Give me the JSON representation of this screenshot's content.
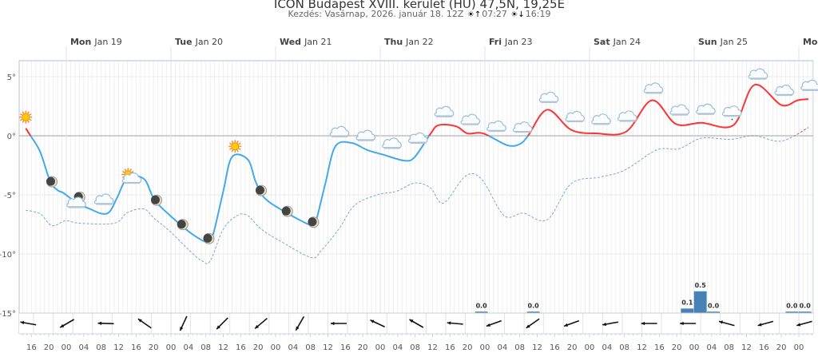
{
  "header": {
    "title": "ICON Budapest XVIII. kerület (HU) 47,5N, 19,25E",
    "subtitle_prefix": "Kezdés: Vasárnap, 2026. január 18. 12Z",
    "sunrise": "07:27",
    "sunset": "16:19"
  },
  "chart_data": {
    "type": "line",
    "title": "ICON Budapest XVIII. kerület (HU) 47,5N, 19,25E",
    "x_unit": "hours since Sun Jan 18 00:00",
    "xlim": [
      11,
      200
    ],
    "ylim": [
      -15,
      6.5
    ],
    "y_ticks": [
      {
        "v": 5,
        "label": "5°"
      },
      {
        "v": 0,
        "label": "0°"
      },
      {
        "v": -5,
        "label": "-5°"
      },
      {
        "v": -10,
        "label": "-10°"
      },
      {
        "v": -15,
        "label": "-15°"
      }
    ],
    "days": [
      {
        "h": 24,
        "name": "Mon",
        "date": "Jan 19"
      },
      {
        "h": 48,
        "name": "Tue",
        "date": "Jan 20"
      },
      {
        "h": 72,
        "name": "Wed",
        "date": "Jan 21"
      },
      {
        "h": 96,
        "name": "Thu",
        "date": "Jan 22"
      },
      {
        "h": 120,
        "name": "Fri",
        "date": "Jan 23"
      },
      {
        "h": 144,
        "name": "Sat",
        "date": "Jan 24"
      },
      {
        "h": 168,
        "name": "Sun",
        "date": "Jan 25"
      },
      {
        "h": 192,
        "name": "Mon",
        "date": ""
      }
    ],
    "hour_labels": [
      "16",
      "20",
      "00",
      "04",
      "08",
      "12",
      "16",
      "20",
      "00",
      "04",
      "08",
      "12",
      "16",
      "20",
      "00",
      "04",
      "08",
      "12",
      "16",
      "20",
      "00",
      "04",
      "08",
      "12",
      "16",
      "20",
      "00",
      "04",
      "08",
      "12",
      "16",
      "20",
      "00",
      "04",
      "08",
      "12",
      "16",
      "20",
      "00",
      "04",
      "08",
      "12",
      "16",
      "20",
      "00"
    ],
    "hour_labels_start": 16,
    "series": [
      {
        "name": "Temperature",
        "colors": {
          "above0": "#ff3333",
          "below0": "#44a9e8"
        },
        "points": [
          [
            14.7,
            0.63
          ],
          [
            15.8,
            0
          ],
          [
            18,
            -1.35
          ],
          [
            20.3,
            -3.85
          ],
          [
            22,
            -4.6
          ],
          [
            23.4,
            -4.85
          ],
          [
            26.5,
            -5.7
          ],
          [
            29.5,
            -6.2
          ],
          [
            32.2,
            -6.6
          ],
          [
            34,
            -6.4
          ],
          [
            35.7,
            -5.2
          ],
          [
            38,
            -3.6
          ],
          [
            41.8,
            -3.65
          ],
          [
            44.2,
            -5.4
          ],
          [
            47.8,
            -6.75
          ],
          [
            52.8,
            -8.3
          ],
          [
            56.4,
            -9
          ],
          [
            57.7,
            -8.3
          ],
          [
            60,
            -4.7
          ],
          [
            62,
            -1.8
          ],
          [
            65.6,
            -2
          ],
          [
            67.4,
            -3.85
          ],
          [
            69.3,
            -5.2
          ],
          [
            73.5,
            -6.3
          ],
          [
            80.2,
            -7.6
          ],
          [
            81.2,
            -7.3
          ],
          [
            83.4,
            -4.05
          ],
          [
            85.7,
            -0.9
          ],
          [
            89.4,
            -0.6
          ],
          [
            93,
            -1.2
          ],
          [
            96.7,
            -1.6
          ],
          [
            101.5,
            -2.1
          ],
          [
            103.9,
            -1.8
          ],
          [
            107.5,
            0.15
          ],
          [
            109.4,
            0.9
          ],
          [
            113.4,
            0.8
          ],
          [
            116,
            0.2
          ],
          [
            119.6,
            0.2
          ],
          [
            125.1,
            -0.8
          ],
          [
            128,
            -0.7
          ],
          [
            129.9,
            0
          ],
          [
            134.3,
            2.2
          ],
          [
            139.8,
            0.5
          ],
          [
            145.6,
            0.2
          ],
          [
            152.4,
            0.35
          ],
          [
            158.3,
            3.0
          ],
          [
            163.8,
            1.0
          ],
          [
            169.7,
            1.1
          ],
          [
            177,
            0.9
          ],
          [
            181.8,
            4.3
          ],
          [
            188,
            2.6
          ],
          [
            191.7,
            3.0
          ],
          [
            194.2,
            3.1
          ]
        ]
      },
      {
        "name": "Dew point",
        "style": "dashed",
        "colors": {
          "above0": "#cc5555",
          "below0": "#7fa6cf"
        },
        "points": [
          [
            14.7,
            -6.3
          ],
          [
            18,
            -6.6
          ],
          [
            20.7,
            -7.6
          ],
          [
            23.8,
            -7.2
          ],
          [
            27.1,
            -7.4
          ],
          [
            35,
            -7.4
          ],
          [
            38,
            -6.5
          ],
          [
            41.8,
            -6.2
          ],
          [
            44.2,
            -7
          ],
          [
            47.8,
            -8.1
          ],
          [
            52.8,
            -9.9
          ],
          [
            55.2,
            -10.6
          ],
          [
            57,
            -10.6
          ],
          [
            60,
            -7.9
          ],
          [
            63.2,
            -6.75
          ],
          [
            65.6,
            -6.75
          ],
          [
            68.7,
            -7.9
          ],
          [
            73.5,
            -9
          ],
          [
            80.2,
            -10.3
          ],
          [
            82.5,
            -9.7
          ],
          [
            86.5,
            -7.9
          ],
          [
            90.1,
            -5.9
          ],
          [
            95.3,
            -5
          ],
          [
            99.7,
            -4.7
          ],
          [
            103.9,
            -4
          ],
          [
            107.5,
            -4.4
          ],
          [
            110.5,
            -5.7
          ],
          [
            115.6,
            -3.4
          ],
          [
            119.3,
            -3.7
          ],
          [
            124.4,
            -6.75
          ],
          [
            128.8,
            -6.55
          ],
          [
            134.3,
            -7.1
          ],
          [
            139.8,
            -4.05
          ],
          [
            146.4,
            -3.5
          ],
          [
            152.1,
            -2.9
          ],
          [
            159.4,
            -1.2
          ],
          [
            164.5,
            -1.1
          ],
          [
            169.7,
            -0.2
          ],
          [
            176.3,
            -0.3
          ],
          [
            181.8,
            0
          ],
          [
            188,
            -0.45
          ],
          [
            194.2,
            0.7
          ]
        ]
      }
    ],
    "weather_icons": {
      "start_h": 14.7,
      "step_h": 6,
      "types": [
        "sun",
        "moon",
        "moon-cloud",
        "cloud",
        "sun-cloud",
        "moon",
        "moon",
        "moon",
        "sun",
        "moon",
        "moon",
        "moon",
        "cloud",
        "cloud",
        "cloud",
        "cloud",
        "cloud",
        "cloud",
        "cloud",
        "cloud",
        "cloud",
        "cloud",
        "cloud",
        "cloud",
        "cloud",
        "cloud",
        "cloud",
        "cloud-drizzle",
        "cloud",
        "cloud",
        "cloud",
        "cloud"
      ]
    },
    "precipitation": {
      "unit": "mm",
      "color": "#4682b4",
      "bars": [
        {
          "h": 119.3,
          "value": 0.0,
          "label": "0.0"
        },
        {
          "h": 131.2,
          "value": 0.0,
          "label": "0.0"
        },
        {
          "h": 166.5,
          "value": 0.1,
          "label": "0.1"
        },
        {
          "h": 169.5,
          "value": 0.5,
          "label": "0.5"
        },
        {
          "h": 172.5,
          "value": 0.0,
          "label": "0.0"
        },
        {
          "h": 190.5,
          "value": 0.0,
          "label": "0.0"
        },
        {
          "h": 193.5,
          "value": 0.0,
          "label": "0.0"
        }
      ]
    },
    "wind": {
      "start_h": 16,
      "step_h": 8.9,
      "arrow_direction_deg": [
        170,
        210,
        178,
        145,
        245,
        225,
        220,
        240,
        180,
        155,
        150,
        175,
        200,
        215,
        200,
        190,
        180,
        180,
        165,
        195,
        195
      ]
    }
  }
}
